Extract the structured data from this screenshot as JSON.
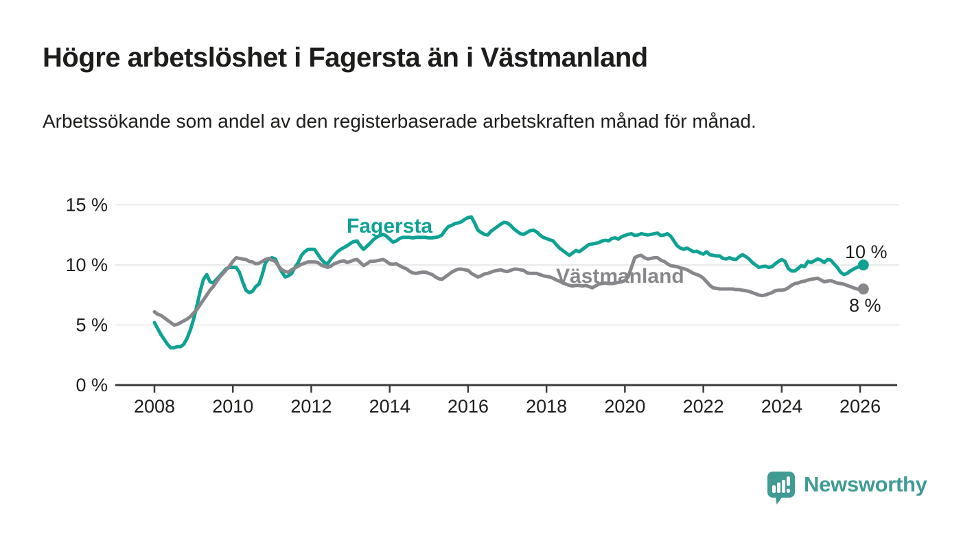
{
  "header": {
    "title": "Högre arbetslöshet i Fagersta än i Västmanland",
    "subtitle": "Arbetssökande som andel av den registerbaserade arbetskraften månad för månad."
  },
  "chart_data": {
    "type": "line",
    "title": "Högre arbetslöshet i Fagersta än i Västmanland",
    "xlabel": "",
    "ylabel": "Arbetssökande som andel av den registerbaserade arbetskraften",
    "x_start_year": 2008,
    "interval_months": 1,
    "x_ticks": [
      2008,
      2010,
      2012,
      2014,
      2016,
      2018,
      2020,
      2022,
      2024,
      2026
    ],
    "y_ticks": [
      {
        "value": 0,
        "label": "0 %"
      },
      {
        "value": 5,
        "label": "5 %"
      },
      {
        "value": 10,
        "label": "10 %"
      },
      {
        "value": 15,
        "label": "15 %"
      }
    ],
    "ylim": [
      0,
      15.7
    ],
    "grid": true,
    "legend_position": "inline-labels",
    "grid_color": "#E4E4E4",
    "axis_color": "#3B3B3B",
    "text_color": "#1D1D1B",
    "series": [
      {
        "name": "Fagersta",
        "color": "#0FA294",
        "end_label": "10 %",
        "last_value": 10.0,
        "values": [
          5.2,
          4.7,
          4.2,
          3.8,
          3.4,
          3.1,
          3.1,
          3.2,
          3.2,
          3.4,
          3.9,
          4.6,
          5.5,
          6.6,
          7.8,
          8.8,
          9.2,
          8.6,
          8.5,
          8.8,
          9.1,
          9.4,
          9.7,
          9.8,
          9.8,
          9.8,
          9.4,
          8.6,
          7.9,
          7.7,
          7.8,
          8.2,
          8.4,
          9.2,
          10.2,
          10.5,
          10.6,
          10.5,
          9.9,
          9.4,
          9.0,
          9.1,
          9.3,
          9.8,
          10.2,
          10.8,
          11.1,
          11.3,
          11.3,
          11.3,
          10.9,
          10.5,
          10.2,
          10.1,
          10.5,
          10.8,
          11.1,
          11.3,
          11.45,
          11.6,
          11.8,
          11.95,
          12.0,
          11.6,
          11.3,
          11.55,
          11.8,
          12.1,
          12.3,
          12.45,
          12.55,
          12.4,
          12.15,
          11.9,
          12.0,
          12.2,
          12.3,
          12.3,
          12.3,
          12.25,
          12.3,
          12.3,
          12.3,
          12.3,
          12.25,
          12.25,
          12.3,
          12.35,
          12.5,
          12.9,
          13.2,
          13.3,
          13.45,
          13.5,
          13.6,
          13.8,
          13.95,
          14.0,
          13.5,
          12.9,
          12.7,
          12.55,
          12.5,
          12.8,
          13.0,
          13.2,
          13.4,
          13.55,
          13.5,
          13.3,
          13.0,
          12.8,
          12.6,
          12.55,
          12.7,
          12.85,
          12.9,
          12.75,
          12.5,
          12.3,
          12.2,
          12.1,
          12.0,
          11.7,
          11.4,
          11.2,
          11.0,
          10.8,
          11.0,
          11.2,
          11.1,
          11.3,
          11.5,
          11.7,
          11.75,
          11.8,
          11.85,
          12.0,
          12.05,
          12.0,
          12.2,
          12.25,
          12.15,
          12.35,
          12.45,
          12.55,
          12.6,
          12.45,
          12.5,
          12.6,
          12.55,
          12.5,
          12.55,
          12.6,
          12.65,
          12.45,
          12.5,
          12.6,
          12.4,
          12.0,
          11.6,
          11.4,
          11.3,
          11.4,
          11.25,
          11.1,
          11.15,
          11.0,
          10.9,
          11.1,
          10.85,
          10.8,
          10.75,
          10.75,
          10.55,
          10.5,
          10.6,
          10.5,
          10.45,
          10.7,
          10.85,
          10.7,
          10.5,
          10.2,
          10.0,
          9.8,
          9.85,
          9.9,
          9.8,
          9.85,
          10.1,
          10.3,
          10.45,
          10.3,
          9.7,
          9.5,
          9.5,
          9.7,
          9.95,
          9.85,
          10.3,
          10.2,
          10.35,
          10.5,
          10.4,
          10.2,
          10.45,
          10.4,
          10.1,
          9.8,
          9.4,
          9.2,
          9.3,
          9.5,
          9.65,
          9.8,
          9.9,
          10.0
        ]
      },
      {
        "name": "Västmanland",
        "color": "#87878B",
        "end_label": "8 %",
        "last_value": 8.0,
        "values": [
          6.1,
          5.9,
          5.8,
          5.6,
          5.4,
          5.2,
          5.0,
          5.05,
          5.2,
          5.35,
          5.5,
          5.7,
          6.0,
          6.3,
          6.7,
          7.1,
          7.5,
          7.9,
          8.2,
          8.6,
          9.0,
          9.3,
          9.6,
          9.9,
          10.3,
          10.6,
          10.55,
          10.5,
          10.45,
          10.3,
          10.25,
          10.1,
          10.15,
          10.3,
          10.45,
          10.55,
          10.4,
          10.3,
          9.9,
          9.6,
          9.45,
          9.4,
          9.6,
          9.75,
          9.9,
          10.05,
          10.15,
          10.25,
          10.25,
          10.25,
          10.2,
          10.0,
          9.9,
          9.8,
          9.9,
          10.1,
          10.2,
          10.3,
          10.35,
          10.2,
          10.3,
          10.4,
          10.45,
          10.2,
          9.95,
          10.1,
          10.3,
          10.3,
          10.35,
          10.4,
          10.45,
          10.3,
          10.1,
          10.05,
          10.1,
          9.95,
          9.8,
          9.7,
          9.5,
          9.35,
          9.3,
          9.35,
          9.4,
          9.4,
          9.3,
          9.2,
          9.0,
          8.85,
          8.8,
          9.0,
          9.2,
          9.4,
          9.55,
          9.65,
          9.65,
          9.6,
          9.55,
          9.3,
          9.15,
          9.0,
          9.1,
          9.25,
          9.3,
          9.4,
          9.5,
          9.55,
          9.6,
          9.5,
          9.45,
          9.55,
          9.65,
          9.65,
          9.6,
          9.55,
          9.35,
          9.3,
          9.3,
          9.3,
          9.2,
          9.1,
          9.05,
          9.0,
          8.9,
          8.75,
          8.65,
          8.5,
          8.4,
          8.3,
          8.25,
          8.3,
          8.3,
          8.25,
          8.3,
          8.2,
          8.1,
          8.25,
          8.4,
          8.45,
          8.5,
          8.45,
          8.45,
          8.5,
          8.55,
          8.6,
          8.7,
          9.0,
          9.8,
          10.6,
          10.75,
          10.8,
          10.6,
          10.5,
          10.55,
          10.6,
          10.6,
          10.4,
          10.3,
          10.1,
          9.95,
          9.9,
          9.85,
          9.75,
          9.7,
          9.6,
          9.45,
          9.3,
          9.2,
          9.1,
          8.9,
          8.6,
          8.3,
          8.1,
          8.05,
          8.0,
          8.0,
          8.0,
          8.0,
          8.0,
          7.95,
          7.95,
          7.9,
          7.85,
          7.8,
          7.7,
          7.6,
          7.5,
          7.45,
          7.5,
          7.6,
          7.7,
          7.85,
          7.9,
          7.9,
          7.95,
          8.1,
          8.3,
          8.45,
          8.5,
          8.6,
          8.65,
          8.75,
          8.8,
          8.85,
          8.9,
          8.75,
          8.6,
          8.65,
          8.7,
          8.6,
          8.5,
          8.45,
          8.4,
          8.3,
          8.2,
          8.1,
          8.0,
          8.0,
          8.0
        ]
      }
    ]
  },
  "footer": {
    "brand": "Newsworthy",
    "logo_icon": "bar-chart-speech-bubble"
  }
}
